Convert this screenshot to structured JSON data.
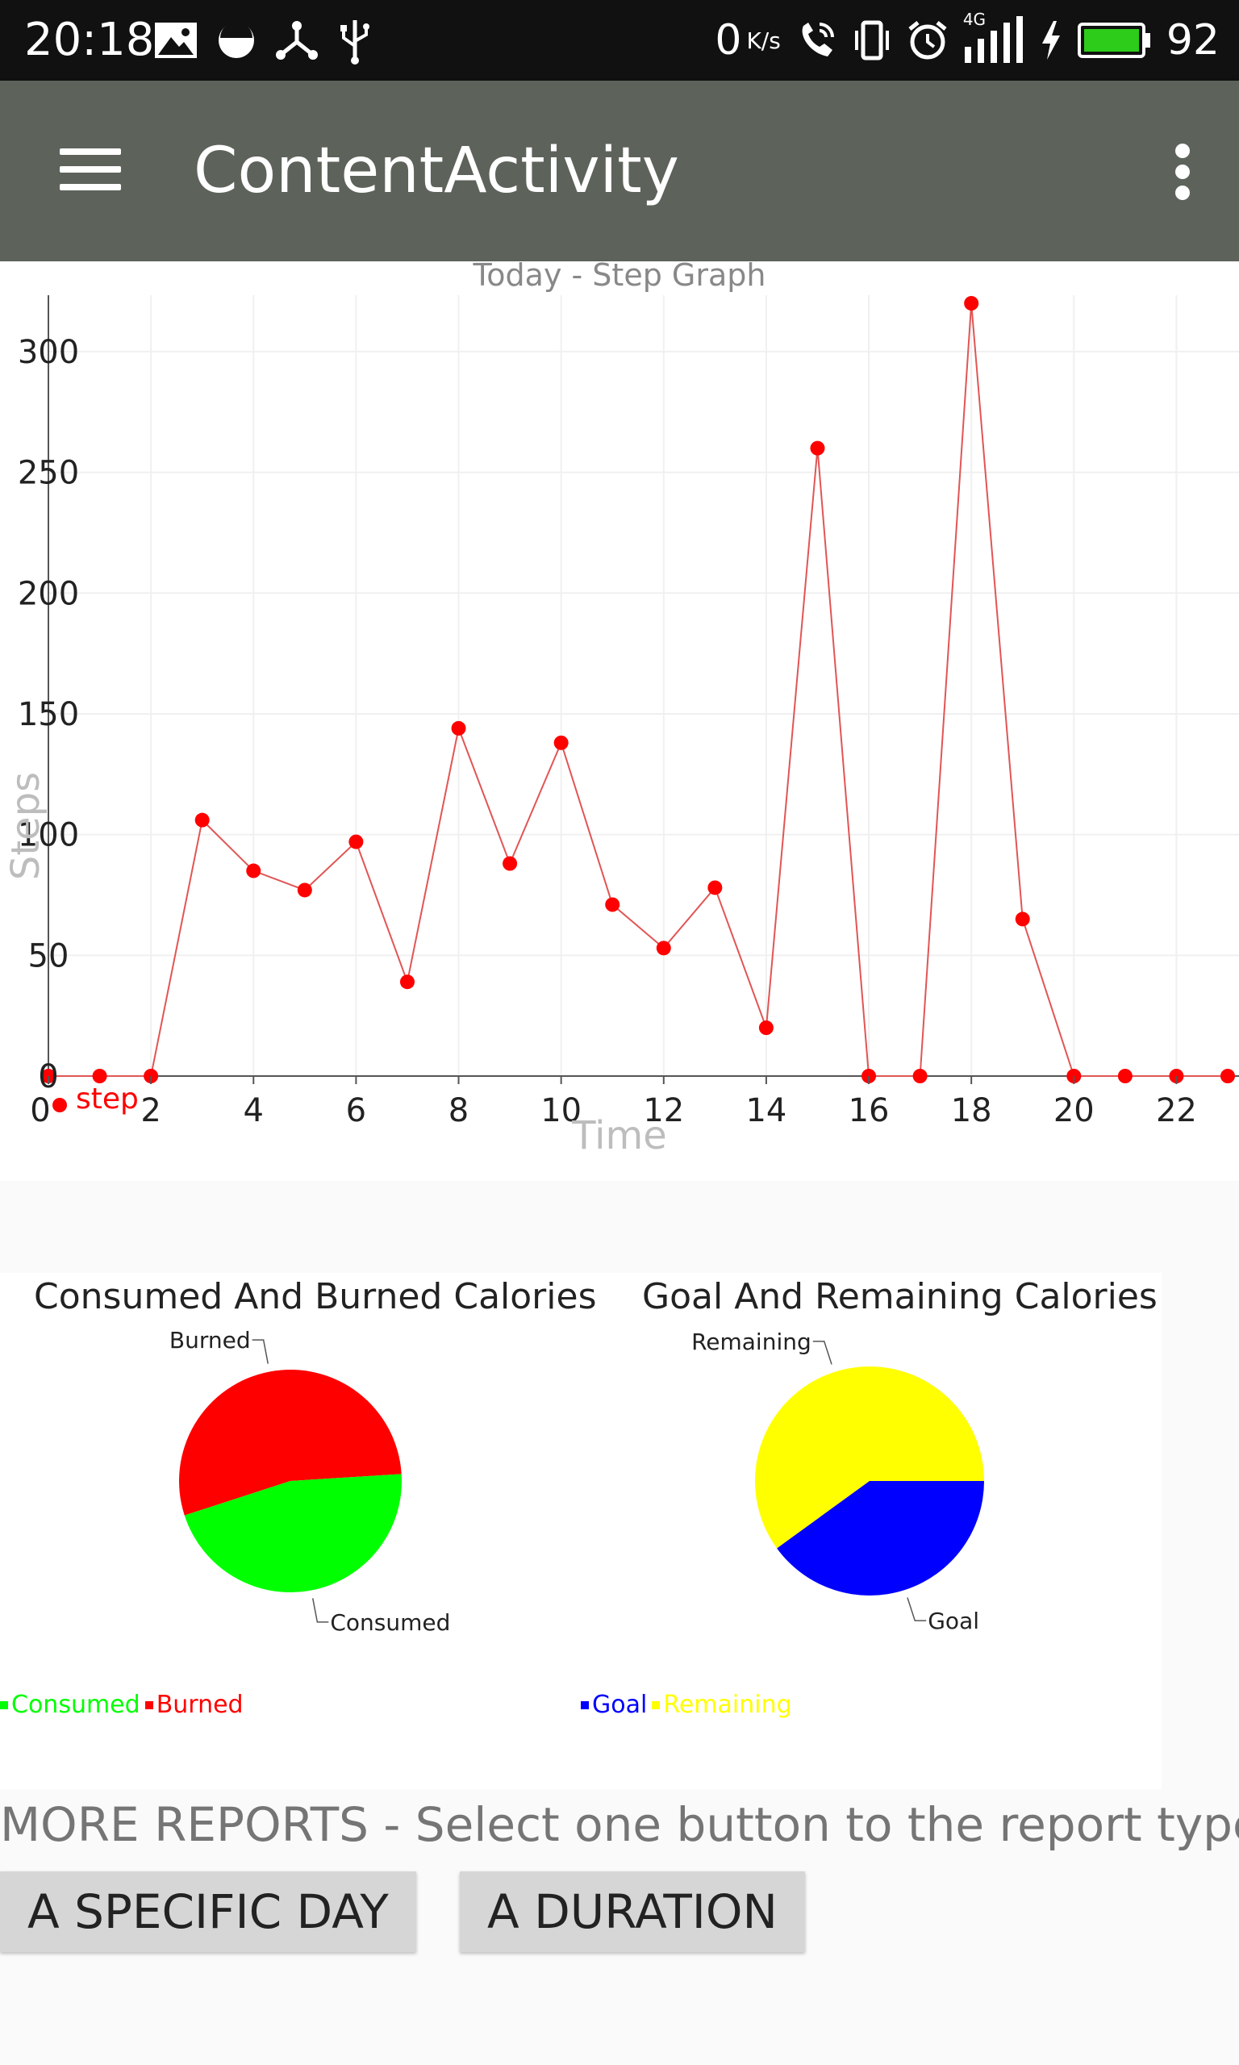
{
  "status_bar": {
    "time": "20:18",
    "speed": "0",
    "speed_unit": "K/s",
    "network": "4G",
    "battery": "92",
    "left_icons": [
      "image-icon",
      "circle-half-icon",
      "share-network-icon",
      "usb-icon"
    ],
    "right_icons": [
      "wifi-calling-icon",
      "vibrate-icon",
      "alarm-icon",
      "signal-icon",
      "charging-icon",
      "battery-icon"
    ]
  },
  "app_bar": {
    "title": "ContentActivity",
    "menu_icon": "hamburger-menu-icon",
    "overflow_icon": "more-vert-icon"
  },
  "chart_data": {
    "type": "line",
    "title": "Today - Step Graph",
    "xlabel": "Time",
    "ylabel": "Steps",
    "xlim": [
      0,
      23
    ],
    "ylim": [
      0,
      320
    ],
    "x_ticks": [
      0,
      2,
      4,
      6,
      8,
      10,
      12,
      14,
      16,
      18,
      20,
      22
    ],
    "y_ticks": [
      0,
      50,
      100,
      150,
      200,
      250,
      300
    ],
    "grid": true,
    "color": "#ff0000",
    "legend": [
      {
        "name": "step",
        "color": "#ff0000"
      }
    ],
    "legend_position": "bottom-left",
    "x": [
      0,
      1,
      2,
      3,
      4,
      5,
      6,
      7,
      8,
      9,
      10,
      11,
      12,
      13,
      14,
      15,
      16,
      17,
      18,
      19,
      20,
      21,
      22,
      23
    ],
    "values": [
      0,
      0,
      0,
      106,
      85,
      77,
      97,
      39,
      144,
      88,
      138,
      71,
      53,
      78,
      20,
      260,
      0,
      0,
      320,
      65,
      0,
      0,
      0,
      0
    ]
  },
  "pies": [
    {
      "title": "Consumed And Burned  Calories",
      "slices": [
        {
          "name": "Burned",
          "value": 54,
          "color": "#ff0000"
        },
        {
          "name": "Consumed",
          "value": 46,
          "color": "#00ff00"
        }
      ],
      "legend": [
        {
          "name": "Consumed",
          "color": "#00ff00"
        },
        {
          "name": "Burned",
          "color": "#ff0000"
        }
      ]
    },
    {
      "title": "Goal And Remaining Calories",
      "slices": [
        {
          "name": "Remaining",
          "value": 60,
          "color": "#ffff00"
        },
        {
          "name": "Goal",
          "value": 40,
          "color": "#0000ff"
        }
      ],
      "legend": [
        {
          "name": "Goal",
          "color": "#0000ff"
        },
        {
          "name": "Remaining",
          "color": "#ffff00"
        }
      ]
    }
  ],
  "more_reports": {
    "label": "MORE REPORTS - Select one button to the report type",
    "specific_day_button": "A SPECIFIC DAY",
    "duration_button": "A DURATION"
  }
}
